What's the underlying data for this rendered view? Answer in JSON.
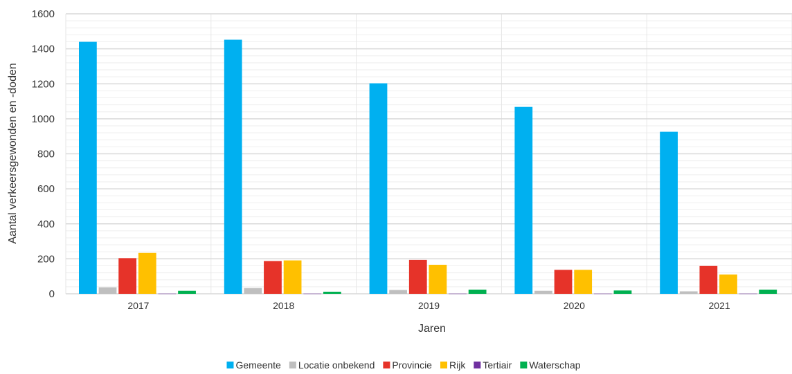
{
  "chart_data": {
    "type": "bar",
    "title": "",
    "xlabel": "Jaren",
    "ylabel": "Aantal verkeersgewonden en -doden",
    "ylim": [
      0,
      1600
    ],
    "ytick_step": 200,
    "minor_step": 40,
    "grid": true,
    "legend_position": "bottom",
    "categories": [
      "2017",
      "2018",
      "2019",
      "2020",
      "2021"
    ],
    "series": [
      {
        "name": "Gemeente",
        "color": "#00b0f0",
        "values": [
          1440,
          1452,
          1203,
          1068,
          926
        ]
      },
      {
        "name": "Locatie onbekend",
        "color": "#bfbfbf",
        "values": [
          37,
          33,
          22,
          17,
          14
        ]
      },
      {
        "name": "Provincie",
        "color": "#e63329",
        "values": [
          204,
          187,
          194,
          137,
          159
        ]
      },
      {
        "name": "Rijk",
        "color": "#ffc000",
        "values": [
          234,
          191,
          166,
          137,
          110
        ]
      },
      {
        "name": "Tertiair",
        "color": "#7030a0",
        "values": [
          1,
          1,
          1,
          1,
          1
        ]
      },
      {
        "name": "Waterschap",
        "color": "#00b050",
        "values": [
          17,
          12,
          24,
          19,
          24
        ]
      }
    ]
  }
}
